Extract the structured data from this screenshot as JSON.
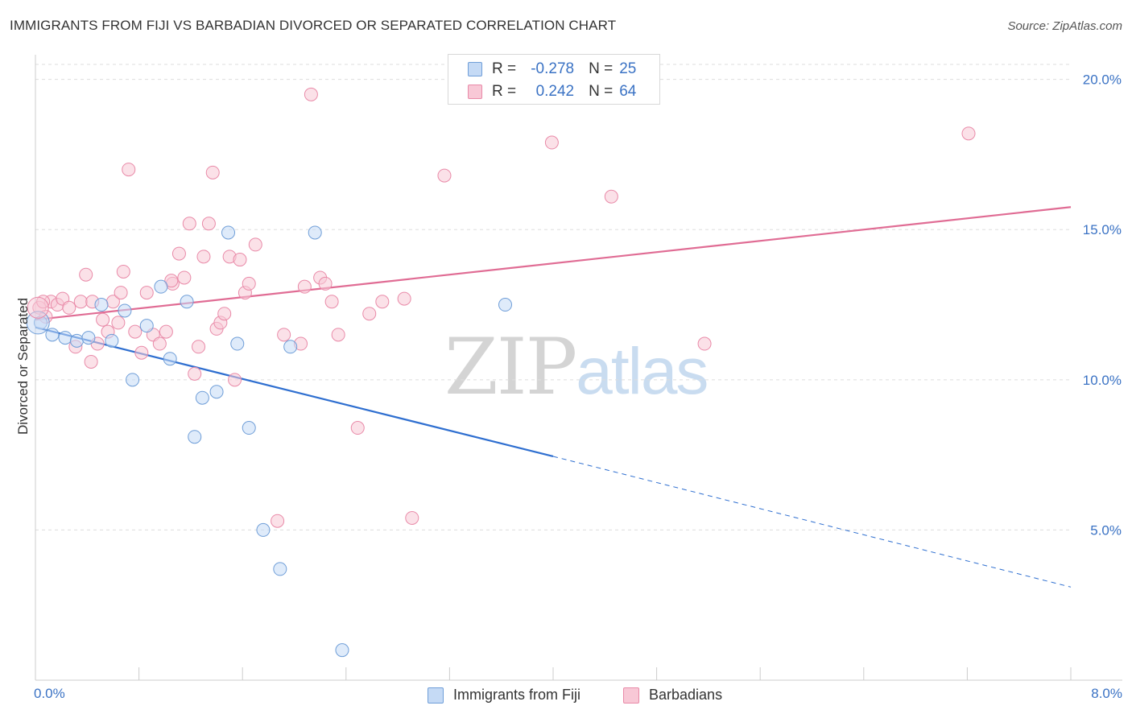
{
  "title": "IMMIGRANTS FROM FIJI VS BARBADIAN DIVORCED OR SEPARATED CORRELATION CHART",
  "source": "Source: ZipAtlas.com",
  "watermark": {
    "zip": "ZIP",
    "atlas": "atlas"
  },
  "colors": {
    "fiji_fill": "#c5daf5",
    "fiji_stroke": "#6f9ed8",
    "fiji_line": "#2f6fd0",
    "barb_fill": "#f8c8d6",
    "barb_stroke": "#e98aa8",
    "barb_line": "#e06c94",
    "tick_text": "#3a72c4",
    "grid": "#dddddd"
  },
  "legend_top": {
    "rows": [
      {
        "r_label": "R =",
        "r_value": "-0.278",
        "n_label": "N =",
        "n_value": "25"
      },
      {
        "r_label": "R =",
        "r_value": "0.242",
        "n_label": "N =",
        "n_value": "64"
      }
    ]
  },
  "chart_data": {
    "type": "scatter",
    "title": "IMMIGRANTS FROM FIJI VS BARBADIAN DIVORCED OR SEPARATED CORRELATION CHART",
    "xlabel": "",
    "ylabel": "Divorced or Separated",
    "xlim": [
      0,
      8
    ],
    "ylim": [
      0,
      20.5
    ],
    "x_tick_labels": [
      "0.0%",
      "8.0%"
    ],
    "y_ticks": [
      5,
      10,
      15,
      20
    ],
    "y_tick_labels": [
      "5.0%",
      "10.0%",
      "15.0%",
      "20.0%"
    ],
    "grid": "horizontal dashed",
    "legend_position": "bottom",
    "series": [
      {
        "name": "Immigrants from Fiji",
        "points": [
          [
            0.04,
            11.9
          ],
          [
            0.13,
            11.5
          ],
          [
            0.23,
            11.4
          ],
          [
            0.32,
            11.3
          ],
          [
            0.41,
            11.4
          ],
          [
            0.51,
            12.5
          ],
          [
            0.59,
            11.3
          ],
          [
            0.69,
            12.3
          ],
          [
            0.75,
            10.0
          ],
          [
            0.86,
            11.8
          ],
          [
            0.97,
            13.1
          ],
          [
            1.04,
            10.7
          ],
          [
            1.17,
            12.6
          ],
          [
            1.23,
            8.1
          ],
          [
            1.29,
            9.4
          ],
          [
            1.4,
            9.6
          ],
          [
            1.49,
            14.9
          ],
          [
            1.56,
            11.2
          ],
          [
            1.65,
            8.4
          ],
          [
            1.76,
            5.0
          ],
          [
            1.89,
            3.7
          ],
          [
            1.97,
            11.1
          ],
          [
            2.16,
            14.9
          ],
          [
            2.37,
            1.0
          ],
          [
            3.63,
            12.5
          ]
        ],
        "trend": {
          "x0": 0.0,
          "y0": 11.75,
          "x1": 4.0,
          "y1": 7.45,
          "dashed_to_x": 8.0,
          "dashed_to_y": 3.1
        }
      },
      {
        "name": "Barbadians",
        "points": [
          [
            0.03,
            12.4
          ],
          [
            0.08,
            12.1
          ],
          [
            0.12,
            12.6
          ],
          [
            0.17,
            12.5
          ],
          [
            0.21,
            12.7
          ],
          [
            0.26,
            12.4
          ],
          [
            0.31,
            11.1
          ],
          [
            0.35,
            12.6
          ],
          [
            0.39,
            13.5
          ],
          [
            0.43,
            10.6
          ],
          [
            0.48,
            11.2
          ],
          [
            0.52,
            12.0
          ],
          [
            0.56,
            11.6
          ],
          [
            0.6,
            12.6
          ],
          [
            0.64,
            11.9
          ],
          [
            0.68,
            13.6
          ],
          [
            0.72,
            17.0
          ],
          [
            0.77,
            11.6
          ],
          [
            0.82,
            10.9
          ],
          [
            0.86,
            12.9
          ],
          [
            0.91,
            11.5
          ],
          [
            0.96,
            11.2
          ],
          [
            1.01,
            11.6
          ],
          [
            1.06,
            13.2
          ],
          [
            1.11,
            14.2
          ],
          [
            1.15,
            13.4
          ],
          [
            1.19,
            15.2
          ],
          [
            1.23,
            10.2
          ],
          [
            1.26,
            11.1
          ],
          [
            1.3,
            14.1
          ],
          [
            1.34,
            15.2
          ],
          [
            1.37,
            16.9
          ],
          [
            1.4,
            11.7
          ],
          [
            1.43,
            11.9
          ],
          [
            1.46,
            12.2
          ],
          [
            1.5,
            14.1
          ],
          [
            1.54,
            10.0
          ],
          [
            1.58,
            14.0
          ],
          [
            1.62,
            12.9
          ],
          [
            1.65,
            13.2
          ],
          [
            1.7,
            14.5
          ],
          [
            1.87,
            5.3
          ],
          [
            1.92,
            11.5
          ],
          [
            2.05,
            11.2
          ],
          [
            2.08,
            13.1
          ],
          [
            2.13,
            19.5
          ],
          [
            2.2,
            13.4
          ],
          [
            2.24,
            13.2
          ],
          [
            2.29,
            12.6
          ],
          [
            2.34,
            11.5
          ],
          [
            2.49,
            8.4
          ],
          [
            2.58,
            12.2
          ],
          [
            2.68,
            12.6
          ],
          [
            2.85,
            12.7
          ],
          [
            2.91,
            5.4
          ],
          [
            3.16,
            16.8
          ],
          [
            3.99,
            17.9
          ],
          [
            4.45,
            16.1
          ],
          [
            5.17,
            11.2
          ],
          [
            7.21,
            18.2
          ],
          [
            0.06,
            12.6
          ],
          [
            0.44,
            12.6
          ],
          [
            0.66,
            12.9
          ],
          [
            1.05,
            13.3
          ]
        ],
        "trend": {
          "x0": 0.0,
          "y0": 12.0,
          "x1": 8.0,
          "y1": 15.75
        }
      }
    ]
  },
  "legend_bottom": [
    "Immigrants from Fiji",
    "Barbadians"
  ]
}
